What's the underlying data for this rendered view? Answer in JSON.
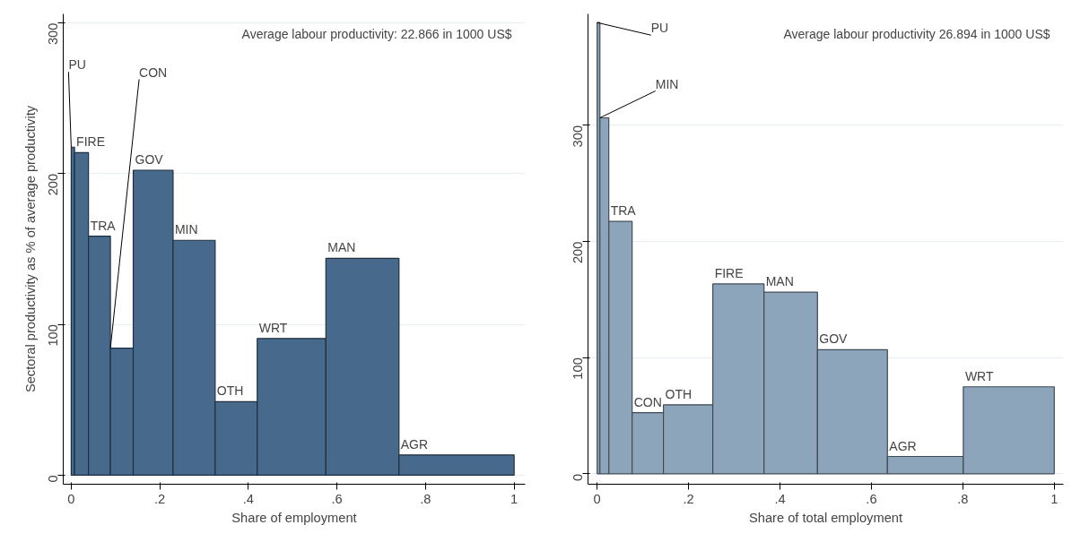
{
  "chart_data": [
    {
      "type": "histogram",
      "xlabel": "Share of employment",
      "ylabel": "Sectoral productivity as % of average productivity",
      "bins": [
        0,
        0.0075,
        0.039,
        0.0885,
        0.14,
        0.23,
        0.325,
        0.42,
        0.575,
        0.74,
        1
      ],
      "values": [
        217.6,
        214,
        158.6,
        84.3,
        202.3,
        155.8,
        48.8,
        90.7,
        143.8,
        13.4
      ],
      "color": "#476a8c",
      "xlim": [
        -0.018,
        1.025
      ],
      "ylim": [
        -6,
        306
      ],
      "xticks": [
        0,
        {
          "value": 0.2,
          "label": ".2"
        },
        {
          "value": 0.4,
          "label": ".4"
        },
        {
          "value": 0.6,
          "label": ".6"
        },
        {
          "value": 0.8,
          "label": ".8"
        },
        1
      ],
      "yticks": [
        0,
        100,
        200,
        300
      ],
      "grid": "y",
      "annotations": [
        "Average labour productivity: 22.866 in 1000 US$",
        {
          "text": "PU",
          "x": 0,
          "y": 217.6
        },
        {
          "text": "FIRE",
          "x": 0.0075,
          "y": 214
        },
        {
          "text": "TRA",
          "x": 0.039,
          "y": 158.6
        },
        {
          "text": "CON",
          "x": 0.0885,
          "y": 84.3
        },
        {
          "text": "GOV",
          "x": 0.14,
          "y": 202.3
        },
        {
          "text": "MIN",
          "x": 0.23,
          "y": 155.8
        },
        {
          "text": "OTH",
          "x": 0.325,
          "y": 48.8
        },
        {
          "text": "WRT",
          "x": 0.42,
          "y": 90.7
        },
        {
          "text": "MAN",
          "x": 0.575,
          "y": 143.8
        },
        {
          "text": "AGR",
          "x": 0.74,
          "y": 13.4
        }
      ]
    },
    {
      "type": "histogram",
      "xlabel": "Share of total employment",
      "bins": [
        0,
        0.006,
        0.0255,
        0.0765,
        0.145,
        0.253,
        0.365,
        0.482,
        0.635,
        0.801,
        1
      ],
      "values": [
        388.5,
        306.5,
        217.3,
        52.6,
        59.4,
        163.5,
        156.3,
        106.8,
        14.9,
        74.9
      ],
      "color": "#8ca5bb",
      "xlim": [
        -0.02,
        1.02
      ],
      "ylim": [
        -9,
        396
      ],
      "xticks": [
        0,
        {
          "value": 0.2,
          "label": ".2"
        },
        {
          "value": 0.4,
          "label": ".4"
        },
        {
          "value": 0.6,
          "label": ".6"
        },
        {
          "value": 0.8,
          "label": ".8"
        },
        1
      ],
      "yticks": [
        0,
        100,
        200,
        300
      ],
      "grid": "y",
      "annotations": [
        "Average labour productivity 26.894 in 1000 US$",
        {
          "text": "PU",
          "x": 0,
          "y": 388.5
        },
        {
          "text": "MIN",
          "x": 0.006,
          "y": 306.5
        },
        {
          "text": "TRA",
          "x": 0.0255,
          "y": 217.3
        },
        {
          "text": "CON",
          "x": 0.0765,
          "y": 52.6
        },
        {
          "text": "OTH",
          "x": 0.145,
          "y": 59.4
        },
        {
          "text": "FIRE",
          "x": 0.253,
          "y": 163.5
        },
        {
          "text": "MAN",
          "x": 0.365,
          "y": 156.3
        },
        {
          "text": "GOV",
          "x": 0.482,
          "y": 106.8
        },
        {
          "text": "AGR",
          "x": 0.635,
          "y": 14.9
        },
        {
          "text": "WRT",
          "x": 0.801,
          "y": 74.9
        }
      ]
    }
  ]
}
